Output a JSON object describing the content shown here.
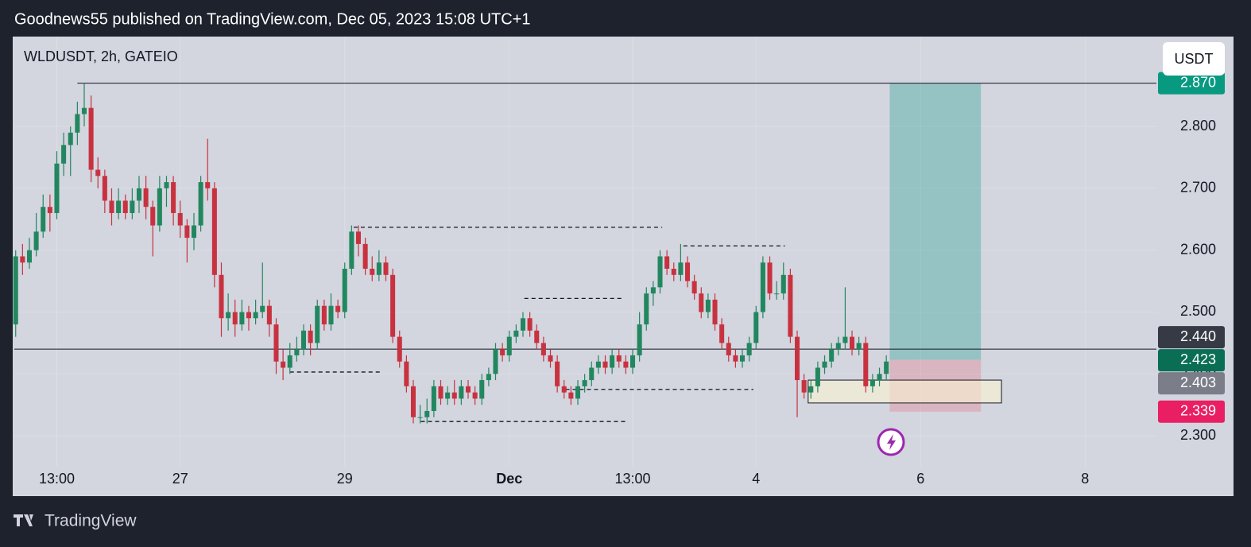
{
  "header": {
    "published": "Goodnews55 published on TradingView.com, Dec 05, 2023 15:08 UTC+1",
    "brand": "TradingView"
  },
  "chart_data": {
    "type": "candlestick",
    "title": "WLDUSDT, 2h, GATEIO",
    "currency": "USDT",
    "up_color": "#22875f",
    "down_color": "#c8323f",
    "grid": true,
    "xlim": [
      -0.2,
      166.4
    ],
    "ylim": [
      2.25,
      2.944
    ],
    "xticks": [
      {
        "value": 6,
        "label": "13:00"
      },
      {
        "value": 24,
        "label": "27"
      },
      {
        "value": 48,
        "label": "29"
      },
      {
        "value": 72,
        "label": "Dec"
      },
      {
        "value": 90,
        "label": "13:00"
      },
      {
        "value": 108,
        "label": "4"
      },
      {
        "value": 132,
        "label": "6"
      },
      {
        "value": 156,
        "label": "8"
      }
    ],
    "yticks": [
      {
        "value": 2.3,
        "label": "2.300"
      },
      {
        "value": 2.4,
        "label": "2.400"
      },
      {
        "value": 2.5,
        "label": "2.500"
      },
      {
        "value": 2.6,
        "label": "2.600"
      },
      {
        "value": 2.7,
        "label": "2.700"
      },
      {
        "value": 2.8,
        "label": "2.800"
      }
    ],
    "candles": [
      [
        2.48,
        2.6,
        2.46,
        2.59
      ],
      [
        2.59,
        2.61,
        2.56,
        2.58
      ],
      [
        2.58,
        2.62,
        2.57,
        2.6
      ],
      [
        2.6,
        2.66,
        2.59,
        2.63
      ],
      [
        2.63,
        2.69,
        2.62,
        2.67
      ],
      [
        2.67,
        2.69,
        2.63,
        2.66
      ],
      [
        2.66,
        2.76,
        2.65,
        2.74
      ],
      [
        2.74,
        2.79,
        2.72,
        2.77
      ],
      [
        2.77,
        2.8,
        2.72,
        2.79
      ],
      [
        2.79,
        2.84,
        2.77,
        2.82
      ],
      [
        2.82,
        2.87,
        2.8,
        2.83
      ],
      [
        2.83,
        2.85,
        2.71,
        2.73
      ],
      [
        2.73,
        2.75,
        2.7,
        2.72
      ],
      [
        2.72,
        2.73,
        2.66,
        2.68
      ],
      [
        2.68,
        2.7,
        2.64,
        2.66
      ],
      [
        2.66,
        2.7,
        2.65,
        2.68
      ],
      [
        2.68,
        2.69,
        2.65,
        2.66
      ],
      [
        2.66,
        2.7,
        2.65,
        2.68
      ],
      [
        2.68,
        2.72,
        2.66,
        2.7
      ],
      [
        2.7,
        2.72,
        2.65,
        2.67
      ],
      [
        2.67,
        2.68,
        2.59,
        2.64
      ],
      [
        2.64,
        2.72,
        2.63,
        2.7
      ],
      [
        2.7,
        2.72,
        2.67,
        2.71
      ],
      [
        2.71,
        2.72,
        2.64,
        2.66
      ],
      [
        2.66,
        2.68,
        2.62,
        2.64
      ],
      [
        2.64,
        2.65,
        2.58,
        2.62
      ],
      [
        2.62,
        2.66,
        2.6,
        2.64
      ],
      [
        2.64,
        2.72,
        2.63,
        2.71
      ],
      [
        2.71,
        2.78,
        2.68,
        2.7
      ],
      [
        2.7,
        2.71,
        2.54,
        2.56
      ],
      [
        2.56,
        2.58,
        2.46,
        2.49
      ],
      [
        2.49,
        2.53,
        2.47,
        2.5
      ],
      [
        2.5,
        2.52,
        2.46,
        2.48
      ],
      [
        2.48,
        2.52,
        2.47,
        2.5
      ],
      [
        2.5,
        2.51,
        2.47,
        2.49
      ],
      [
        2.49,
        2.52,
        2.48,
        2.5
      ],
      [
        2.5,
        2.58,
        2.49,
        2.51
      ],
      [
        2.51,
        2.52,
        2.46,
        2.48
      ],
      [
        2.48,
        2.49,
        2.4,
        2.42
      ],
      [
        2.42,
        2.44,
        2.39,
        2.41
      ],
      [
        2.41,
        2.45,
        2.4,
        2.43
      ],
      [
        2.43,
        2.46,
        2.42,
        2.44
      ],
      [
        2.44,
        2.48,
        2.43,
        2.47
      ],
      [
        2.47,
        2.48,
        2.43,
        2.45
      ],
      [
        2.45,
        2.52,
        2.44,
        2.51
      ],
      [
        2.51,
        2.52,
        2.47,
        2.48
      ],
      [
        2.48,
        2.53,
        2.47,
        2.51
      ],
      [
        2.51,
        2.52,
        2.49,
        2.5
      ],
      [
        2.5,
        2.58,
        2.49,
        2.57
      ],
      [
        2.57,
        2.64,
        2.56,
        2.63
      ],
      [
        2.63,
        2.64,
        2.59,
        2.61
      ],
      [
        2.61,
        2.62,
        2.56,
        2.57
      ],
      [
        2.57,
        2.59,
        2.55,
        2.56
      ],
      [
        2.56,
        2.6,
        2.55,
        2.58
      ],
      [
        2.58,
        2.59,
        2.55,
        2.56
      ],
      [
        2.56,
        2.57,
        2.45,
        2.46
      ],
      [
        2.46,
        2.47,
        2.41,
        2.42
      ],
      [
        2.42,
        2.43,
        2.37,
        2.38
      ],
      [
        2.38,
        2.39,
        2.32,
        2.33
      ],
      [
        2.33,
        2.35,
        2.32,
        2.33
      ],
      [
        2.33,
        2.36,
        2.32,
        2.34
      ],
      [
        2.34,
        2.39,
        2.33,
        2.38
      ],
      [
        2.38,
        2.39,
        2.35,
        2.36
      ],
      [
        2.36,
        2.38,
        2.35,
        2.37
      ],
      [
        2.37,
        2.39,
        2.35,
        2.36
      ],
      [
        2.36,
        2.39,
        2.35,
        2.38
      ],
      [
        2.38,
        2.39,
        2.36,
        2.37
      ],
      [
        2.37,
        2.38,
        2.35,
        2.36
      ],
      [
        2.36,
        2.4,
        2.35,
        2.39
      ],
      [
        2.39,
        2.41,
        2.38,
        2.4
      ],
      [
        2.4,
        2.45,
        2.39,
        2.44
      ],
      [
        2.44,
        2.45,
        2.42,
        2.43
      ],
      [
        2.43,
        2.47,
        2.42,
        2.46
      ],
      [
        2.46,
        2.48,
        2.45,
        2.47
      ],
      [
        2.47,
        2.5,
        2.46,
        2.49
      ],
      [
        2.49,
        2.5,
        2.46,
        2.47
      ],
      [
        2.47,
        2.48,
        2.44,
        2.45
      ],
      [
        2.45,
        2.46,
        2.42,
        2.43
      ],
      [
        2.43,
        2.44,
        2.41,
        2.42
      ],
      [
        2.42,
        2.43,
        2.37,
        2.38
      ],
      [
        2.38,
        2.39,
        2.36,
        2.37
      ],
      [
        2.37,
        2.38,
        2.35,
        2.36
      ],
      [
        2.36,
        2.39,
        2.35,
        2.38
      ],
      [
        2.38,
        2.4,
        2.37,
        2.39
      ],
      [
        2.39,
        2.42,
        2.38,
        2.41
      ],
      [
        2.41,
        2.43,
        2.4,
        2.42
      ],
      [
        2.42,
        2.43,
        2.4,
        2.41
      ],
      [
        2.41,
        2.44,
        2.4,
        2.43
      ],
      [
        2.43,
        2.44,
        2.41,
        2.42
      ],
      [
        2.42,
        2.43,
        2.4,
        2.41
      ],
      [
        2.41,
        2.44,
        2.4,
        2.43
      ],
      [
        2.43,
        2.5,
        2.42,
        2.48
      ],
      [
        2.48,
        2.54,
        2.47,
        2.53
      ],
      [
        2.53,
        2.55,
        2.51,
        2.54
      ],
      [
        2.54,
        2.6,
        2.53,
        2.59
      ],
      [
        2.59,
        2.6,
        2.56,
        2.57
      ],
      [
        2.57,
        2.58,
        2.55,
        2.56
      ],
      [
        2.56,
        2.61,
        2.55,
        2.58
      ],
      [
        2.58,
        2.59,
        2.54,
        2.55
      ],
      [
        2.55,
        2.56,
        2.52,
        2.53
      ],
      [
        2.53,
        2.54,
        2.49,
        2.5
      ],
      [
        2.5,
        2.53,
        2.49,
        2.52
      ],
      [
        2.52,
        2.53,
        2.47,
        2.48
      ],
      [
        2.48,
        2.49,
        2.44,
        2.45
      ],
      [
        2.45,
        2.46,
        2.42,
        2.43
      ],
      [
        2.43,
        2.44,
        2.41,
        2.42
      ],
      [
        2.42,
        2.44,
        2.41,
        2.43
      ],
      [
        2.43,
        2.46,
        2.42,
        2.45
      ],
      [
        2.45,
        2.51,
        2.44,
        2.5
      ],
      [
        2.5,
        2.59,
        2.49,
        2.58
      ],
      [
        2.58,
        2.59,
        2.52,
        2.53
      ],
      [
        2.53,
        2.55,
        2.52,
        2.53
      ],
      [
        2.53,
        2.58,
        2.52,
        2.56
      ],
      [
        2.56,
        2.57,
        2.45,
        2.46
      ],
      [
        2.46,
        2.47,
        2.33,
        2.39
      ],
      [
        2.39,
        2.4,
        2.36,
        2.37
      ],
      [
        2.37,
        2.39,
        2.36,
        2.38
      ],
      [
        2.38,
        2.42,
        2.37,
        2.41
      ],
      [
        2.41,
        2.43,
        2.4,
        2.42
      ],
      [
        2.42,
        2.45,
        2.41,
        2.44
      ],
      [
        2.44,
        2.46,
        2.43,
        2.45
      ],
      [
        2.45,
        2.54,
        2.44,
        2.46
      ],
      [
        2.46,
        2.47,
        2.43,
        2.44
      ],
      [
        2.44,
        2.46,
        2.43,
        2.45
      ],
      [
        2.45,
        2.46,
        2.37,
        2.38
      ],
      [
        2.38,
        2.4,
        2.37,
        2.39
      ],
      [
        2.39,
        2.41,
        2.38,
        2.4
      ],
      [
        2.4,
        2.43,
        2.39,
        2.42
      ]
    ],
    "lines": [
      {
        "price": 2.87,
        "from": 9
      },
      {
        "price": 2.44,
        "from": -0.2
      }
    ],
    "dashed_levels": [
      {
        "price": 2.637,
        "from": 49.3,
        "to": 94.3
      },
      {
        "price": 2.403,
        "from": 40,
        "to": 53.3
      },
      {
        "price": 2.323,
        "from": 59.1,
        "to": 89.3
      },
      {
        "price": 2.522,
        "from": 74.2,
        "to": 88.5
      },
      {
        "price": 2.375,
        "from": 80.2,
        "to": 107.6
      },
      {
        "price": 2.607,
        "from": 97.4,
        "to": 112.2
      }
    ],
    "zone": {
      "top": 2.39,
      "bottom": 2.353,
      "from": 115.6,
      "to": 143.8
    },
    "position": {
      "target": 2.87,
      "entry": 2.423,
      "stop": 2.339,
      "from": 127.5,
      "to": 140.8
    },
    "price_labels": [
      {
        "value": 2.87,
        "label": "2.870",
        "color": "#089981"
      },
      {
        "value": 2.44,
        "label": "2.440",
        "color": "#363a45"
      },
      {
        "value": 2.423,
        "label": "2.423",
        "color": "#0a6e55"
      },
      {
        "value": 2.403,
        "label": "2.403",
        "color": "#7b7e89"
      },
      {
        "value": 2.339,
        "label": "2.339",
        "color": "#e91e63"
      }
    ]
  }
}
